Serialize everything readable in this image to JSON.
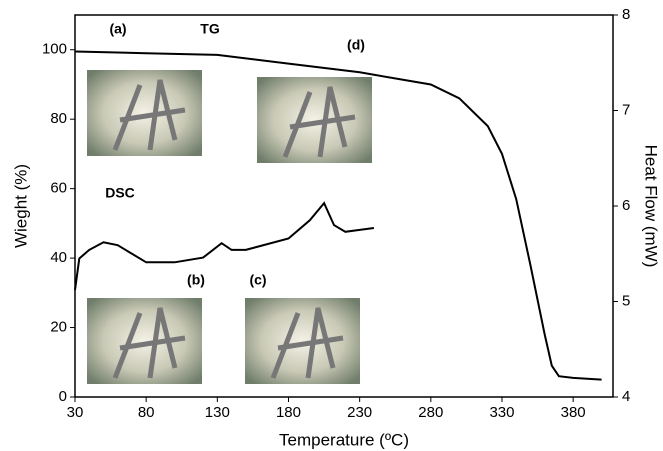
{
  "chart_data": {
    "type": "line",
    "x_label": "Temperature (ºC)",
    "y_label": "Wieght (%)",
    "y2_label": "Heat Flow (mW)",
    "xlim": [
      30,
      408
    ],
    "xticks": [
      30,
      80,
      130,
      180,
      230,
      280,
      330,
      380
    ],
    "ylim": [
      0,
      110
    ],
    "yticks": [
      0,
      20,
      40,
      60,
      80,
      100
    ],
    "y2lim": [
      4,
      8
    ],
    "y2ticks": [
      4,
      5,
      6,
      7,
      8
    ],
    "annotations": [
      "(a)",
      "TG",
      "(d)",
      "DSC",
      "(b)",
      "(c)"
    ],
    "series": [
      {
        "name": "TG",
        "color": "#000000",
        "x": [
          30,
          80,
          130,
          180,
          230,
          280,
          300,
          320,
          330,
          340,
          350,
          360,
          365,
          370,
          380,
          400
        ],
        "values": [
          99.5,
          99,
          98.5,
          96,
          93.5,
          90,
          86,
          78,
          70,
          57,
          38,
          18,
          9,
          6,
          5.5,
          5
        ]
      },
      {
        "name": "DSC",
        "color": "#000000",
        "axis": "y2",
        "x": [
          30,
          33,
          40,
          50,
          60,
          80,
          100,
          120,
          133,
          140,
          150,
          180,
          195,
          205,
          212,
          220,
          230,
          240
        ],
        "values": [
          5.12,
          5.45,
          5.54,
          5.62,
          5.59,
          5.41,
          5.41,
          5.46,
          5.61,
          5.54,
          5.54,
          5.66,
          5.85,
          6.03,
          5.8,
          5.73,
          5.75,
          5.77
        ]
      }
    ]
  }
}
